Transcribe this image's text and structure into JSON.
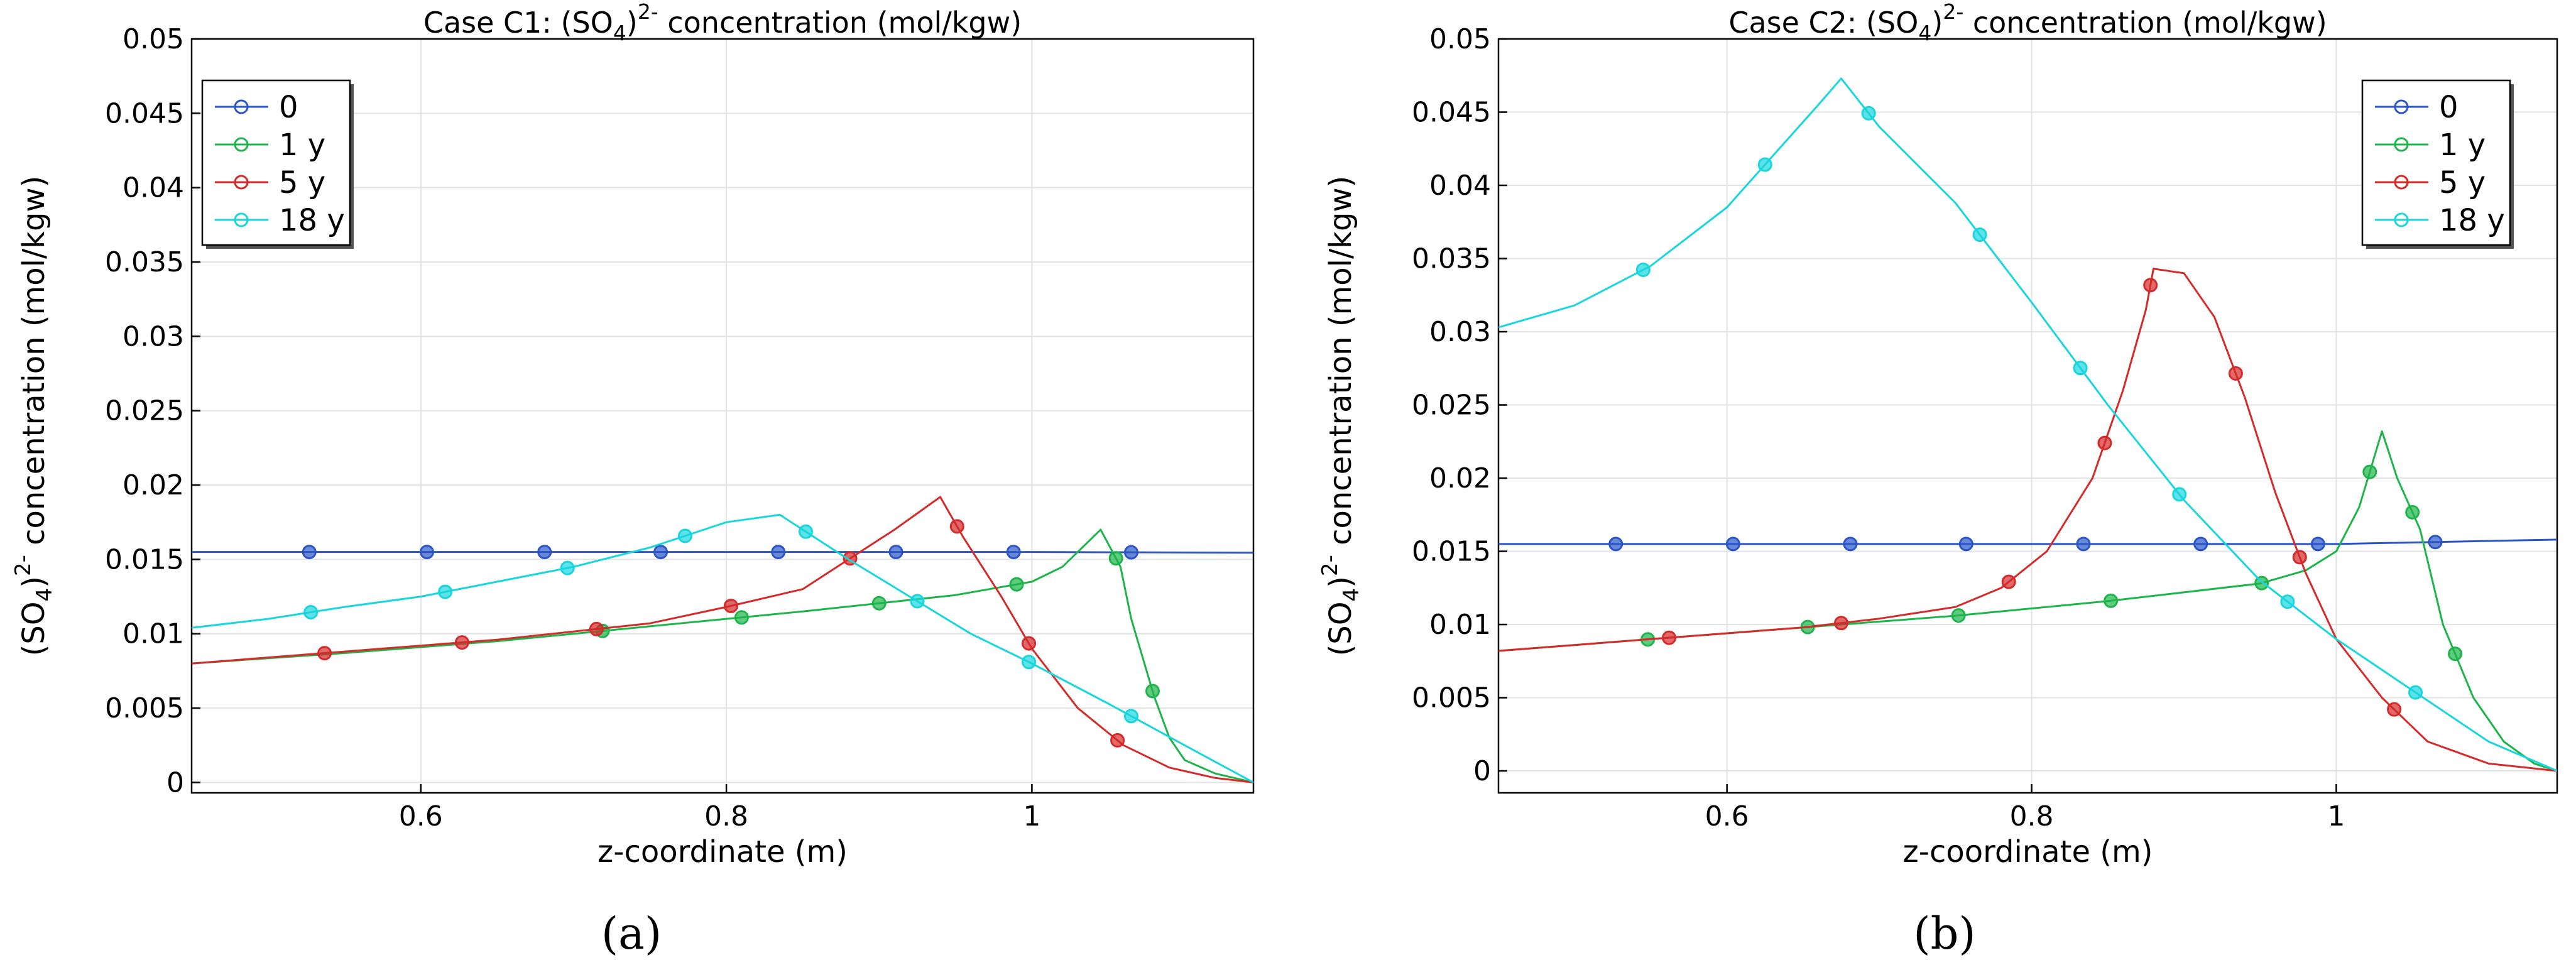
{
  "colors": {
    "0": "#2b55c7",
    "1 y": "#1db54a",
    "5 y": "#d42a2a",
    "18 y": "#17d6dd"
  },
  "chart_data": [
    {
      "type": "line",
      "title_prefix": "Case C1: (SO",
      "title_sub": "4",
      "title_mid": ")",
      "title_sup": "2-",
      "title_suffix": " concentration (mol/kgw)",
      "xlabel": "z-coordinate (m)",
      "ylabel_prefix": "(SO",
      "ylabel_sub": "4",
      "ylabel_mid": ")",
      "ylabel_sup": "2-",
      "ylabel_suffix": " concentration (mol/kgw)",
      "xlim": [
        0.45,
        1.145
      ],
      "ylim": [
        -0.0007,
        0.05
      ],
      "xticks": [
        0.6,
        0.8,
        1.0
      ],
      "xtick_labels": [
        "0.6",
        "0.8",
        "1"
      ],
      "yticks": [
        0,
        0.005,
        0.01,
        0.015,
        0.02,
        0.025,
        0.03,
        0.035,
        0.04,
        0.045,
        0.05
      ],
      "ytick_labels": [
        "0",
        "0.005",
        "0.01",
        "0.015",
        "0.02",
        "0.025",
        "0.03",
        "0.035",
        "0.04",
        "0.045",
        "0.05"
      ],
      "grid": true,
      "legend_position": "top-left",
      "panel_label": "(a)",
      "series": [
        {
          "name": "0",
          "x": [
            0.45,
            0.6,
            0.8,
            1.0,
            1.145
          ],
          "y": [
            0.0155,
            0.0155,
            0.0155,
            0.0155,
            0.01545
          ],
          "markers_x": [
            0.527,
            0.604,
            0.681,
            0.757,
            0.834,
            0.911,
            0.988,
            1.065
          ]
        },
        {
          "name": "1 y",
          "x": [
            0.45,
            0.55,
            0.65,
            0.75,
            0.85,
            0.95,
            1.0,
            1.02,
            1.035,
            1.045,
            1.058,
            1.065,
            1.08,
            1.09,
            1.1,
            1.12,
            1.145
          ],
          "y": [
            0.008,
            0.0087,
            0.0095,
            0.0105,
            0.0115,
            0.0126,
            0.0135,
            0.0145,
            0.016,
            0.017,
            0.0145,
            0.011,
            0.0058,
            0.003,
            0.0015,
            0.0006,
            0.0
          ],
          "markers_x": [
            0.719,
            0.81,
            0.9,
            0.99,
            1.055,
            1.079
          ]
        },
        {
          "name": "5 y",
          "x": [
            0.45,
            0.55,
            0.65,
            0.75,
            0.8,
            0.85,
            0.88,
            0.91,
            0.94,
            0.955,
            0.98,
            1.0,
            1.03,
            1.06,
            1.09,
            1.12,
            1.145
          ],
          "y": [
            0.008,
            0.0088,
            0.0096,
            0.0107,
            0.0118,
            0.013,
            0.015,
            0.017,
            0.0192,
            0.0165,
            0.0125,
            0.009,
            0.005,
            0.0025,
            0.001,
            0.0003,
            0.0
          ],
          "markers_x": [
            0.537,
            0.627,
            0.715,
            0.803,
            0.881,
            0.951,
            0.998,
            1.056
          ]
        },
        {
          "name": "18 y",
          "x": [
            0.45,
            0.5,
            0.55,
            0.6,
            0.65,
            0.7,
            0.75,
            0.8,
            0.835,
            0.85,
            0.88,
            0.92,
            0.96,
            1.0,
            1.05,
            1.1,
            1.145
          ],
          "y": [
            0.0104,
            0.011,
            0.0118,
            0.0125,
            0.0135,
            0.0145,
            0.0158,
            0.0175,
            0.018,
            0.017,
            0.015,
            0.0125,
            0.01,
            0.008,
            0.0053,
            0.0025,
            0.0
          ],
          "markers_x": [
            0.528,
            0.616,
            0.696,
            0.773,
            0.852,
            0.925,
            0.998,
            1.065
          ]
        }
      ]
    },
    {
      "type": "line",
      "title_prefix": "Case C2: (SO",
      "title_sub": "4",
      "title_mid": ")",
      "title_sup": "2-",
      "title_suffix": " concentration (mol/kgw)",
      "xlabel": "z-coordinate (m)",
      "ylabel_prefix": "(SO",
      "ylabel_sub": "4",
      "ylabel_mid": ")",
      "ylabel_sup": "2-",
      "ylabel_suffix": " concentration (mol/kgw)",
      "xlim": [
        0.45,
        1.145
      ],
      "ylim": [
        -0.0015,
        0.05
      ],
      "xticks": [
        0.6,
        0.8,
        1.0
      ],
      "xtick_labels": [
        "0.6",
        "0.8",
        "1"
      ],
      "yticks": [
        0,
        0.005,
        0.01,
        0.015,
        0.02,
        0.025,
        0.03,
        0.035,
        0.04,
        0.045,
        0.05
      ],
      "ytick_labels": [
        "0",
        "0.005",
        "0.01",
        "0.015",
        "0.02",
        "0.025",
        "0.03",
        "0.035",
        "0.04",
        "0.045",
        "0.05"
      ],
      "grid": true,
      "legend_position": "top-right",
      "panel_label": "(b)",
      "series": [
        {
          "name": "0",
          "x": [
            0.45,
            0.6,
            0.8,
            1.0,
            1.145
          ],
          "y": [
            0.0155,
            0.0155,
            0.0155,
            0.0155,
            0.0158
          ],
          "markers_x": [
            0.527,
            0.604,
            0.681,
            0.757,
            0.834,
            0.911,
            0.988,
            1.065
          ]
        },
        {
          "name": "1 y",
          "x": [
            0.45,
            0.55,
            0.65,
            0.75,
            0.85,
            0.95,
            0.98,
            1.0,
            1.015,
            1.03,
            1.04,
            1.055,
            1.07,
            1.09,
            1.11,
            1.13,
            1.145
          ],
          "y": [
            0.0082,
            0.009,
            0.0098,
            0.0106,
            0.0116,
            0.0128,
            0.0137,
            0.015,
            0.018,
            0.0232,
            0.02,
            0.0165,
            0.01,
            0.005,
            0.002,
            0.0005,
            0.0
          ],
          "markers_x": [
            0.548,
            0.653,
            0.752,
            0.852,
            0.951,
            1.022,
            1.05,
            1.078
          ]
        },
        {
          "name": "5 y",
          "x": [
            0.45,
            0.55,
            0.65,
            0.7,
            0.75,
            0.78,
            0.81,
            0.84,
            0.86,
            0.875,
            0.88,
            0.9,
            0.92,
            0.94,
            0.96,
            0.98,
            1.0,
            1.03,
            1.06,
            1.1,
            1.145
          ],
          "y": [
            0.0082,
            0.009,
            0.0098,
            0.0104,
            0.0112,
            0.0125,
            0.015,
            0.02,
            0.026,
            0.0315,
            0.0343,
            0.034,
            0.031,
            0.0255,
            0.019,
            0.0135,
            0.009,
            0.005,
            0.002,
            0.0005,
            0.0
          ],
          "markers_x": [
            0.562,
            0.675,
            0.785,
            0.848,
            0.878,
            0.934,
            0.976,
            1.038
          ]
        },
        {
          "name": "18 y",
          "x": [
            0.45,
            0.5,
            0.55,
            0.6,
            0.63,
            0.66,
            0.675,
            0.7,
            0.75,
            0.8,
            0.85,
            0.9,
            0.95,
            1.0,
            1.05,
            1.1,
            1.145
          ],
          "y": [
            0.0303,
            0.0318,
            0.0345,
            0.0385,
            0.042,
            0.0455,
            0.0473,
            0.044,
            0.0388,
            0.032,
            0.025,
            0.0185,
            0.013,
            0.009,
            0.0055,
            0.002,
            0.0
          ],
          "markers_x": [
            0.545,
            0.625,
            0.693,
            0.766,
            0.832,
            0.897,
            0.968,
            1.052
          ]
        }
      ]
    }
  ]
}
